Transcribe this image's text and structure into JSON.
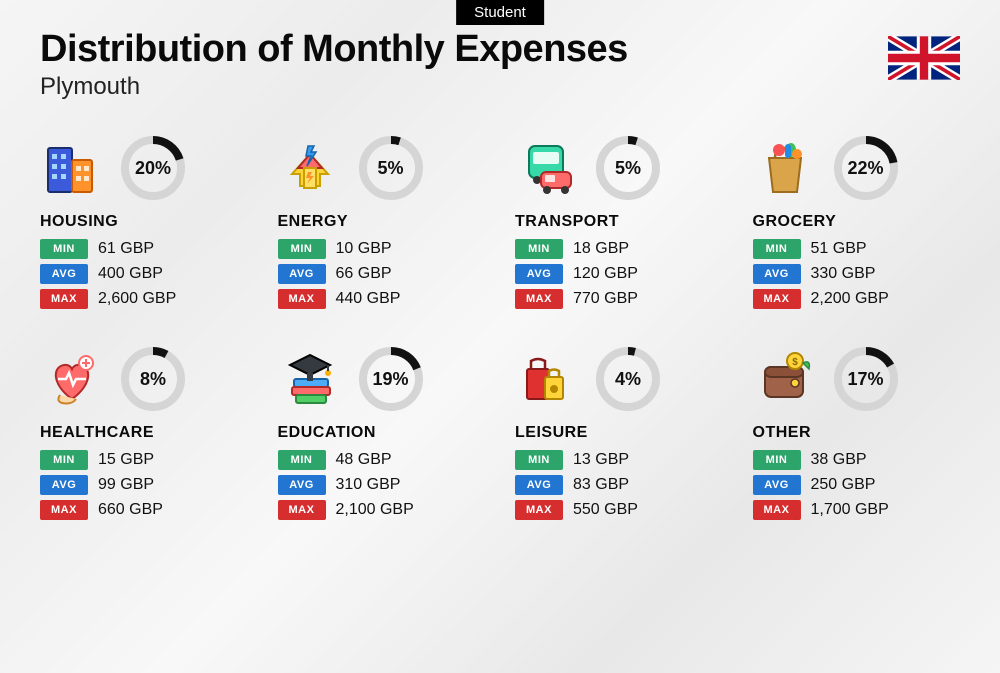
{
  "tag": "Student",
  "title": "Distribution of Monthly Expenses",
  "subtitle": "Plymouth",
  "currency": "GBP",
  "ring": {
    "track_color": "#d5d5d5",
    "progress_color": "#111111",
    "stroke_width": 8,
    "radius": 28
  },
  "badges": {
    "min": {
      "label": "MIN",
      "color": "#2da56a"
    },
    "avg": {
      "label": "AVG",
      "color": "#2276d2"
    },
    "max": {
      "label": "MAX",
      "color": "#d62e2e"
    }
  },
  "categories": [
    {
      "key": "housing",
      "name": "HOUSING",
      "pct": 20,
      "min": "61 GBP",
      "avg": "400 GBP",
      "max": "2,600 GBP",
      "icon": "housing-icon"
    },
    {
      "key": "energy",
      "name": "ENERGY",
      "pct": 5,
      "min": "10 GBP",
      "avg": "66 GBP",
      "max": "440 GBP",
      "icon": "energy-icon"
    },
    {
      "key": "transport",
      "name": "TRANSPORT",
      "pct": 5,
      "min": "18 GBP",
      "avg": "120 GBP",
      "max": "770 GBP",
      "icon": "transport-icon"
    },
    {
      "key": "grocery",
      "name": "GROCERY",
      "pct": 22,
      "min": "51 GBP",
      "avg": "330 GBP",
      "max": "2,200 GBP",
      "icon": "grocery-icon"
    },
    {
      "key": "healthcare",
      "name": "HEALTHCARE",
      "pct": 8,
      "min": "15 GBP",
      "avg": "99 GBP",
      "max": "660 GBP",
      "icon": "healthcare-icon"
    },
    {
      "key": "education",
      "name": "EDUCATION",
      "pct": 19,
      "min": "48 GBP",
      "avg": "310 GBP",
      "max": "2,100 GBP",
      "icon": "education-icon"
    },
    {
      "key": "leisure",
      "name": "LEISURE",
      "pct": 4,
      "min": "13 GBP",
      "avg": "83 GBP",
      "max": "550 GBP",
      "icon": "leisure-icon"
    },
    {
      "key": "other",
      "name": "OTHER",
      "pct": 17,
      "min": "38 GBP",
      "avg": "250 GBP",
      "max": "1,700 GBP",
      "icon": "other-icon"
    }
  ]
}
